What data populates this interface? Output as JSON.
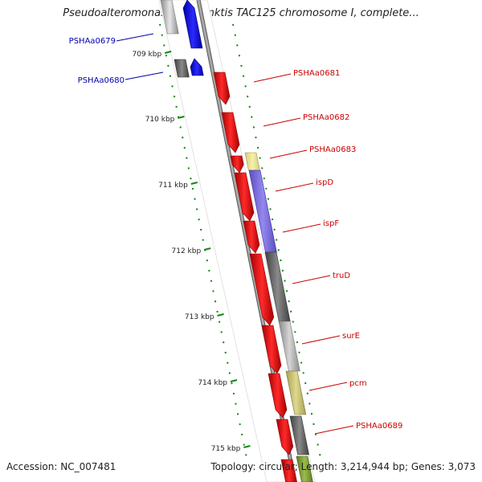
{
  "title": "Pseudoalteromonas haloplanktis TAC125 chromosome I, complete...",
  "footer": {
    "accession": "Accession: NC_007481",
    "summary": "Topology: circular; Length: 3,214,944 bp; Genes: 3,073"
  },
  "colors": {
    "gene_red": "#ff0000",
    "gene_blue": "#0000ff",
    "label_red": "#cc0000",
    "label_blue": "#0000aa",
    "tick_green": "#118811",
    "backbone": "#888888"
  },
  "ticks": [
    "709 kbp",
    "710 kbp",
    "711 kbp",
    "712 kbp",
    "713 kbp",
    "714 kbp",
    "715 kbp"
  ],
  "left_labels": [
    "PSHAa0679",
    "PSHAa0680"
  ],
  "right_labels": [
    "PSHAa0681",
    "PSHAa0682",
    "PSHAa0683",
    "ispD",
    "ispF",
    "truD",
    "surE",
    "pcm",
    "PSHAa0689"
  ]
}
